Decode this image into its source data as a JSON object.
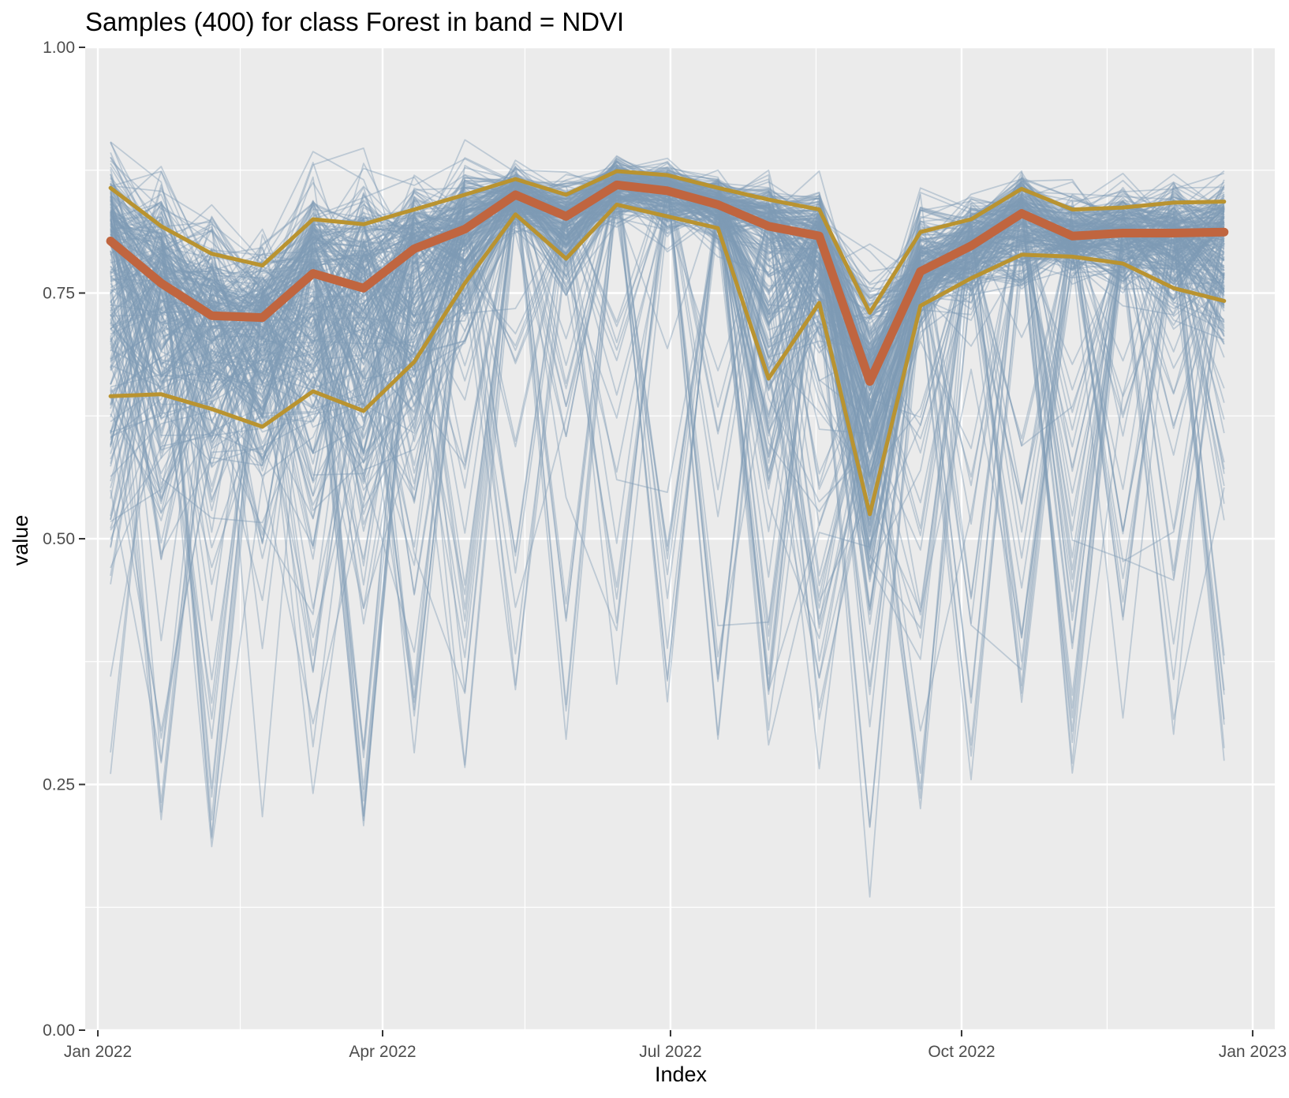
{
  "chart_data": {
    "type": "line",
    "title": "Samples (400) for class Forest in band = NDVI",
    "xlabel": "Index",
    "ylabel": "value",
    "ylim": [
      0.0,
      1.0
    ],
    "xlim": [
      "2021-12-28",
      "2023-01-08"
    ],
    "y_ticks": [
      "0.00",
      "0.25",
      "0.50",
      "0.75",
      "1.00"
    ],
    "y_tick_values": [
      0.0,
      0.25,
      0.5,
      0.75,
      1.0
    ],
    "x_ticks": [
      "Jan 2022",
      "Apr 2022",
      "Jul 2022",
      "Oct 2022",
      "Jan 2023"
    ],
    "x_tick_dates": [
      "2022-01-01",
      "2022-04-01",
      "2022-07-01",
      "2022-10-01",
      "2023-01-01"
    ],
    "x_minor_dates": [
      "2022-02-15",
      "2022-05-16",
      "2022-08-16",
      "2022-11-16"
    ],
    "y_minor_values": [
      0.125,
      0.375,
      0.625,
      0.875
    ],
    "grid": true,
    "panel_background": "#ebebeb",
    "colors": {
      "samples": "#7f9cb4",
      "median": "#c0653f",
      "quartiles": "#b99330"
    },
    "x": [
      "2022-01-05",
      "2022-01-21",
      "2022-02-06",
      "2022-02-22",
      "2022-03-10",
      "2022-03-26",
      "2022-04-11",
      "2022-04-27",
      "2022-05-13",
      "2022-05-29",
      "2022-06-14",
      "2022-06-30",
      "2022-07-16",
      "2022-08-01",
      "2022-08-17",
      "2022-09-02",
      "2022-09-18",
      "2022-10-04",
      "2022-10-20",
      "2022-11-05",
      "2022-11-21",
      "2022-12-07",
      "2022-12-23"
    ],
    "series": [
      {
        "role": "median",
        "values": [
          0.803,
          0.76,
          0.727,
          0.725,
          0.77,
          0.755,
          0.795,
          0.815,
          0.85,
          0.828,
          0.86,
          0.854,
          0.84,
          0.818,
          0.808,
          0.66,
          0.772,
          0.798,
          0.831,
          0.808,
          0.811,
          0.811,
          0.812
        ]
      },
      {
        "role": "q75",
        "values": [
          0.857,
          0.818,
          0.79,
          0.778,
          0.825,
          0.82,
          0.835,
          0.85,
          0.866,
          0.85,
          0.874,
          0.87,
          0.857,
          0.845,
          0.835,
          0.73,
          0.812,
          0.825,
          0.856,
          0.835,
          0.837,
          0.842,
          0.843
        ]
      },
      {
        "role": "q25",
        "values": [
          0.645,
          0.647,
          0.632,
          0.614,
          0.65,
          0.63,
          0.68,
          0.76,
          0.83,
          0.785,
          0.84,
          0.828,
          0.816,
          0.663,
          0.74,
          0.525,
          0.737,
          0.765,
          0.789,
          0.787,
          0.78,
          0.755,
          0.742
        ]
      }
    ]
  }
}
